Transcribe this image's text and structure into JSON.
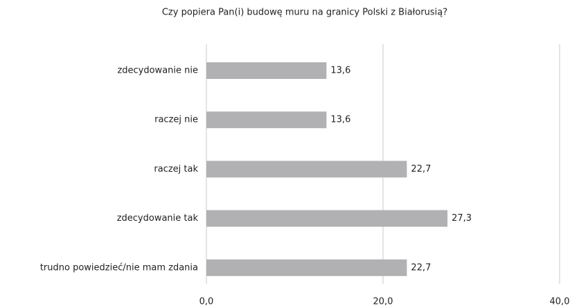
{
  "chart_data": {
    "type": "barh",
    "title": "Czy popiera Pan(i) budowę muru na granicy Polski z Białorusią?",
    "categories": [
      "zdecydowanie nie",
      "raczej nie",
      "raczej tak",
      "zdecydowanie tak",
      "trudno powiedzieć/nie mam zdania"
    ],
    "values": [
      13.6,
      13.6,
      22.7,
      27.3,
      22.7
    ],
    "value_labels": [
      "13,6",
      "13,6",
      "22,7",
      "27,3",
      "22,7"
    ],
    "color": "#b1b0b2",
    "xlim": [
      0,
      40
    ],
    "xticks": [
      {
        "value": 0,
        "label": "0,0"
      },
      {
        "value": 20,
        "label": "20,0"
      },
      {
        "value": 40,
        "label": "40,0"
      }
    ],
    "grid": true
  }
}
